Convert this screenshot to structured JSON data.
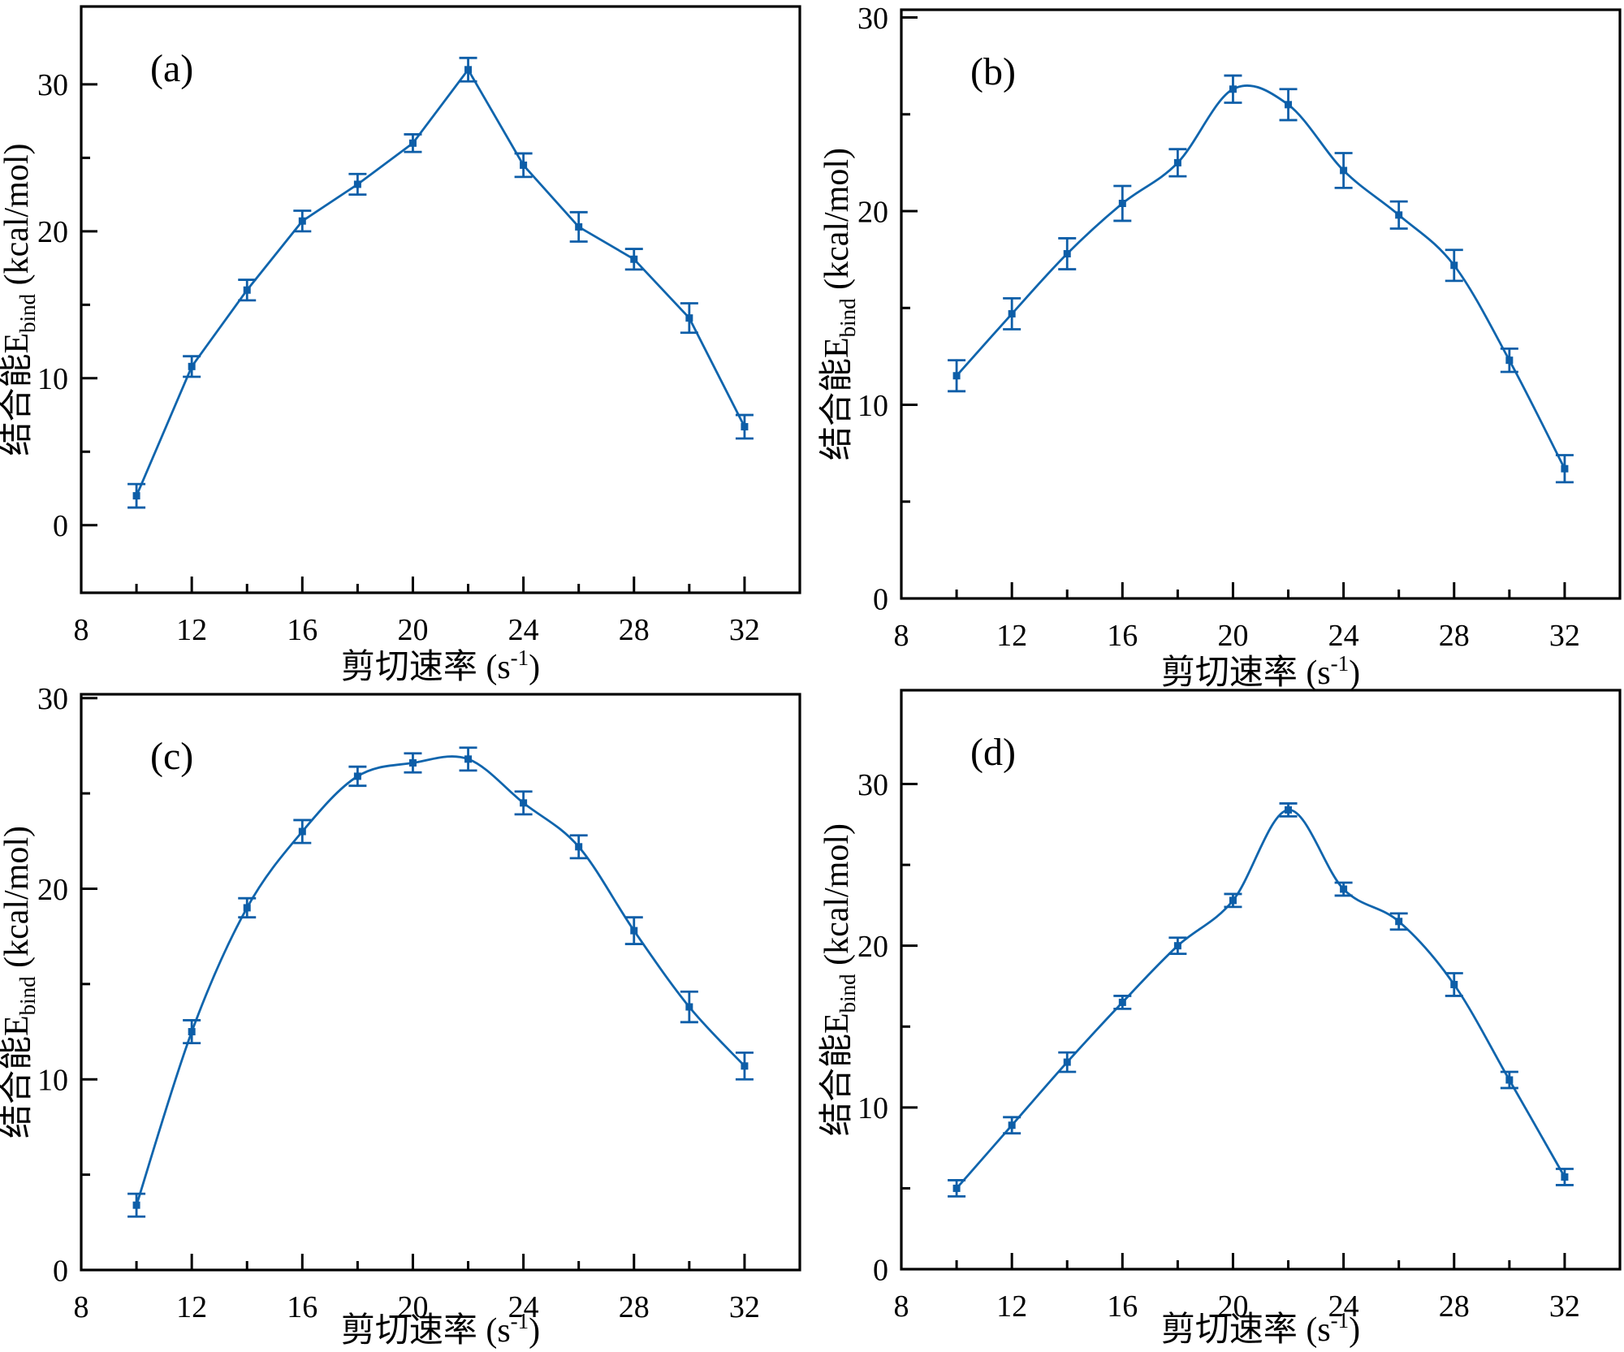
{
  "figure": {
    "background": "#ffffff",
    "panel_letters": [
      "(a)",
      "(b)",
      "(c)",
      "(d)"
    ]
  },
  "labels": {
    "xlabel_full": "剪切速率 (s⁻¹)",
    "xlabel_prefix": "剪切速率 (s",
    "xlabel_superscript": "-1",
    "xlabel_suffix": ")",
    "ylabel_full": "结合能Ebind (kcal/mol)",
    "ylabel_prefix": "结合能E",
    "ylabel_subscript": "bind",
    "ylabel_suffix": " (kcal/mol)"
  },
  "style": {
    "line_color": "#1065ad",
    "marker_color": "#0d5ea8",
    "axis_color": "#000000",
    "text_color": "#000000",
    "background": "#ffffff"
  },
  "chart_data": [
    {
      "panel": "(a)",
      "type": "line",
      "smooth": false,
      "x": [
        10,
        12,
        14,
        16,
        18,
        20,
        22,
        24,
        26,
        28,
        30,
        32
      ],
      "y": [
        2.0,
        10.8,
        16.0,
        20.7,
        23.2,
        26.0,
        31.0,
        24.5,
        20.3,
        18.1,
        14.1,
        6.7
      ],
      "yerr": [
        0.8,
        0.7,
        0.7,
        0.7,
        0.7,
        0.6,
        0.8,
        0.8,
        1.0,
        0.7,
        1.0,
        0.8
      ],
      "xlim": [
        8,
        34
      ],
      "ylim": [
        -4.6,
        35.3
      ],
      "x_major_ticks": [
        8,
        12,
        16,
        20,
        24,
        28,
        32
      ],
      "x_minor_ticks": [
        10,
        14,
        18,
        22,
        26,
        30
      ],
      "y_major_ticks": [
        0,
        10,
        20,
        30
      ],
      "y_minor_ticks": [
        5,
        15,
        25
      ],
      "xlabel": "剪切速率 (s⁻¹)",
      "ylabel": "结合能Ebind (kcal/mol)",
      "grid": false,
      "legend": null
    },
    {
      "panel": "(b)",
      "type": "line",
      "smooth": true,
      "x": [
        10,
        12,
        14,
        16,
        18,
        20,
        22,
        24,
        26,
        28,
        30,
        32
      ],
      "y": [
        11.5,
        14.7,
        17.8,
        20.4,
        22.5,
        26.3,
        25.5,
        22.1,
        19.8,
        17.2,
        12.3,
        6.7
      ],
      "yerr": [
        0.8,
        0.8,
        0.8,
        0.9,
        0.7,
        0.7,
        0.8,
        0.9,
        0.7,
        0.8,
        0.6,
        0.7
      ],
      "xlim": [
        8,
        34
      ],
      "ylim": [
        0,
        30.4
      ],
      "x_major_ticks": [
        8,
        12,
        16,
        20,
        24,
        28,
        32
      ],
      "x_minor_ticks": [
        10,
        14,
        18,
        22,
        26,
        30
      ],
      "y_major_ticks": [
        0,
        10,
        20,
        30
      ],
      "y_minor_ticks": [
        5,
        15,
        25
      ],
      "xlabel": "剪切速率 (s⁻¹)",
      "ylabel": "结合能Ebind (kcal/mol)",
      "grid": false,
      "legend": null
    },
    {
      "panel": "(c)",
      "type": "line",
      "smooth": true,
      "x": [
        10,
        12,
        14,
        16,
        18,
        20,
        22,
        24,
        26,
        28,
        30,
        32
      ],
      "y": [
        3.4,
        12.5,
        19.0,
        23.0,
        25.9,
        26.6,
        26.8,
        24.5,
        22.2,
        17.8,
        13.8,
        10.7
      ],
      "yerr": [
        0.6,
        0.6,
        0.5,
        0.6,
        0.5,
        0.5,
        0.6,
        0.6,
        0.6,
        0.7,
        0.8,
        0.7
      ],
      "xlim": [
        8,
        34
      ],
      "ylim": [
        0,
        30.2
      ],
      "x_major_ticks": [
        8,
        12,
        16,
        20,
        24,
        28,
        32
      ],
      "x_minor_ticks": [
        10,
        14,
        18,
        22,
        26,
        30
      ],
      "y_major_ticks": [
        0,
        10,
        20,
        30
      ],
      "y_minor_ticks": [
        5,
        15,
        25
      ],
      "xlabel": "剪切速率 (s⁻¹)",
      "ylabel": "结合能Ebind (kcal/mol)",
      "grid": false,
      "legend": null
    },
    {
      "panel": "(d)",
      "type": "line",
      "smooth": true,
      "x": [
        10,
        12,
        14,
        16,
        18,
        20,
        22,
        24,
        26,
        28,
        30,
        32
      ],
      "y": [
        5.0,
        8.9,
        12.8,
        16.5,
        20.0,
        22.8,
        28.4,
        23.5,
        21.5,
        17.6,
        11.7,
        5.7
      ],
      "yerr": [
        0.5,
        0.5,
        0.6,
        0.4,
        0.5,
        0.4,
        0.4,
        0.4,
        0.5,
        0.7,
        0.5,
        0.5
      ],
      "xlim": [
        8,
        34
      ],
      "ylim": [
        0,
        35.8
      ],
      "x_major_ticks": [
        8,
        12,
        16,
        20,
        24,
        28,
        32
      ],
      "x_minor_ticks": [
        10,
        14,
        18,
        22,
        26,
        30
      ],
      "y_major_ticks": [
        0,
        10,
        20,
        30
      ],
      "y_minor_ticks": [
        5,
        15,
        25
      ],
      "xlabel": "剪切速率 (s⁻¹)",
      "ylabel": "结合能Ebind (kcal/mol)",
      "grid": false,
      "legend": null
    }
  ]
}
